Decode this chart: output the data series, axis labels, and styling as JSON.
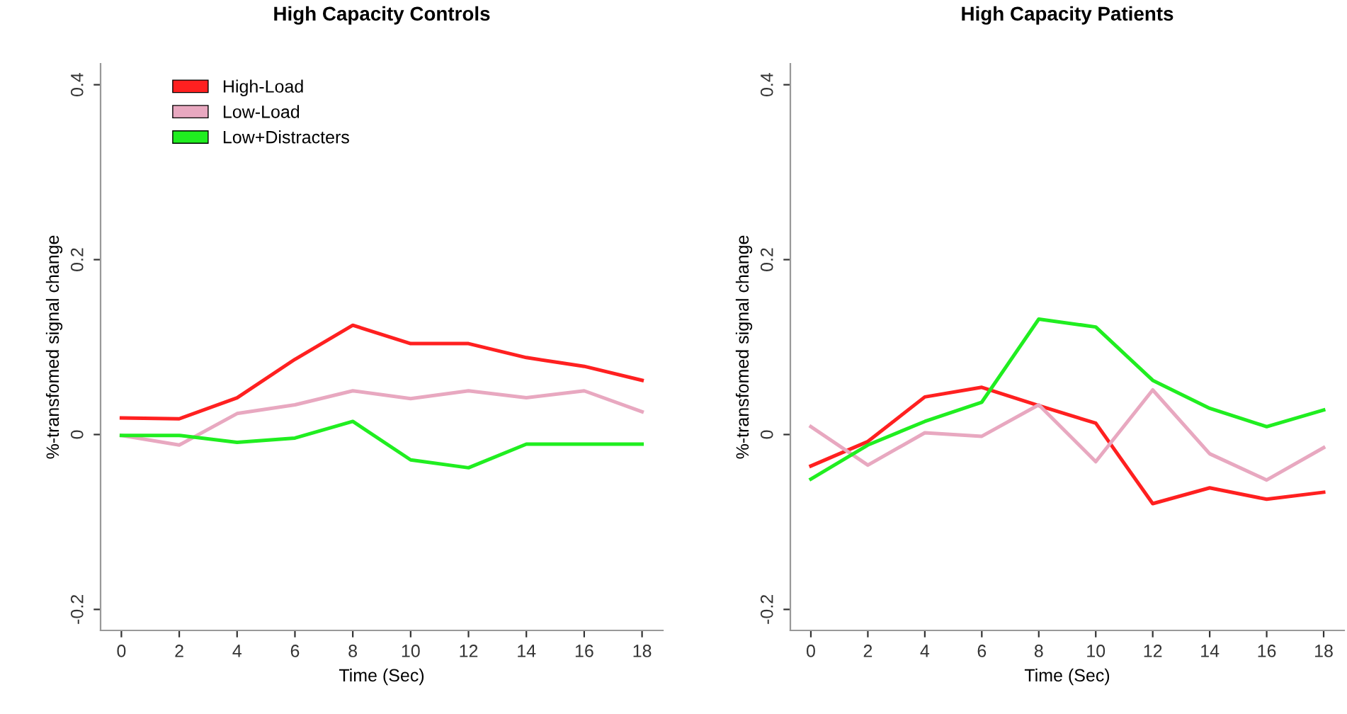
{
  "chart_data": [
    {
      "type": "line",
      "title": "High Capacity Controls",
      "xlabel": "Time (Sec)",
      "ylabel": "%-transfomed signal change",
      "x": [
        0,
        2,
        4,
        6,
        8,
        10,
        12,
        14,
        16,
        18
      ],
      "xlim": [
        -0.72,
        18.72
      ],
      "ylim": [
        -0.224,
        0.424
      ],
      "xticks": [
        0,
        2,
        4,
        6,
        8,
        10,
        12,
        14,
        16,
        18
      ],
      "yticks": [
        {
          "value": -0.2,
          "label": "-0.2"
        },
        0,
        0.2,
        0.4
      ],
      "grid": false,
      "legend": "top left",
      "marker": "none",
      "line_style": "solid",
      "series": [
        {
          "name": "High-Load",
          "color": "#ff2020",
          "values": [
            0.019,
            0.018,
            0.042,
            0.086,
            0.125,
            0.104,
            0.104,
            0.088,
            0.078,
            0.062
          ]
        },
        {
          "name": "Low-Load",
          "color": "#e8a8c0",
          "values": [
            -0.001,
            -0.012,
            0.024,
            0.034,
            0.05,
            0.041,
            0.05,
            0.042,
            0.05,
            0.026
          ]
        },
        {
          "name": "Low+Distracters",
          "color": "#20ee20",
          "values": [
            -0.001,
            -0.001,
            -0.009,
            -0.004,
            0.015,
            -0.029,
            -0.038,
            -0.011,
            -0.011,
            -0.011
          ]
        }
      ]
    },
    {
      "type": "line",
      "title": "High Capacity Patients",
      "xlabel": "Time (Sec)",
      "ylabel": "%-transfomed signal change",
      "x": [
        0,
        2,
        4,
        6,
        8,
        10,
        12,
        14,
        16,
        18
      ],
      "xlim": [
        -0.72,
        18.72
      ],
      "ylim": [
        -0.224,
        0.424
      ],
      "xticks": [
        0,
        2,
        4,
        6,
        8,
        10,
        12,
        14,
        16,
        18
      ],
      "yticks": [
        {
          "value": -0.2,
          "label": "-0.2"
        },
        0,
        0.2,
        0.4
      ],
      "grid": false,
      "legend": false,
      "marker": "none",
      "line_style": "solid",
      "series": [
        {
          "color": "#ff2020",
          "values": [
            -0.036,
            -0.008,
            0.043,
            0.054,
            0.033,
            0.013,
            -0.079,
            -0.061,
            -0.074,
            -0.066
          ]
        },
        {
          "color": "#e8a8c0",
          "values": [
            0.009,
            -0.035,
            0.002,
            -0.002,
            0.034,
            -0.031,
            0.051,
            -0.022,
            -0.052,
            -0.015
          ]
        },
        {
          "color": "#20ee20",
          "values": [
            -0.051,
            -0.012,
            0.015,
            0.037,
            0.132,
            0.123,
            0.062,
            0.03,
            0.009,
            0.028
          ]
        }
      ]
    }
  ]
}
